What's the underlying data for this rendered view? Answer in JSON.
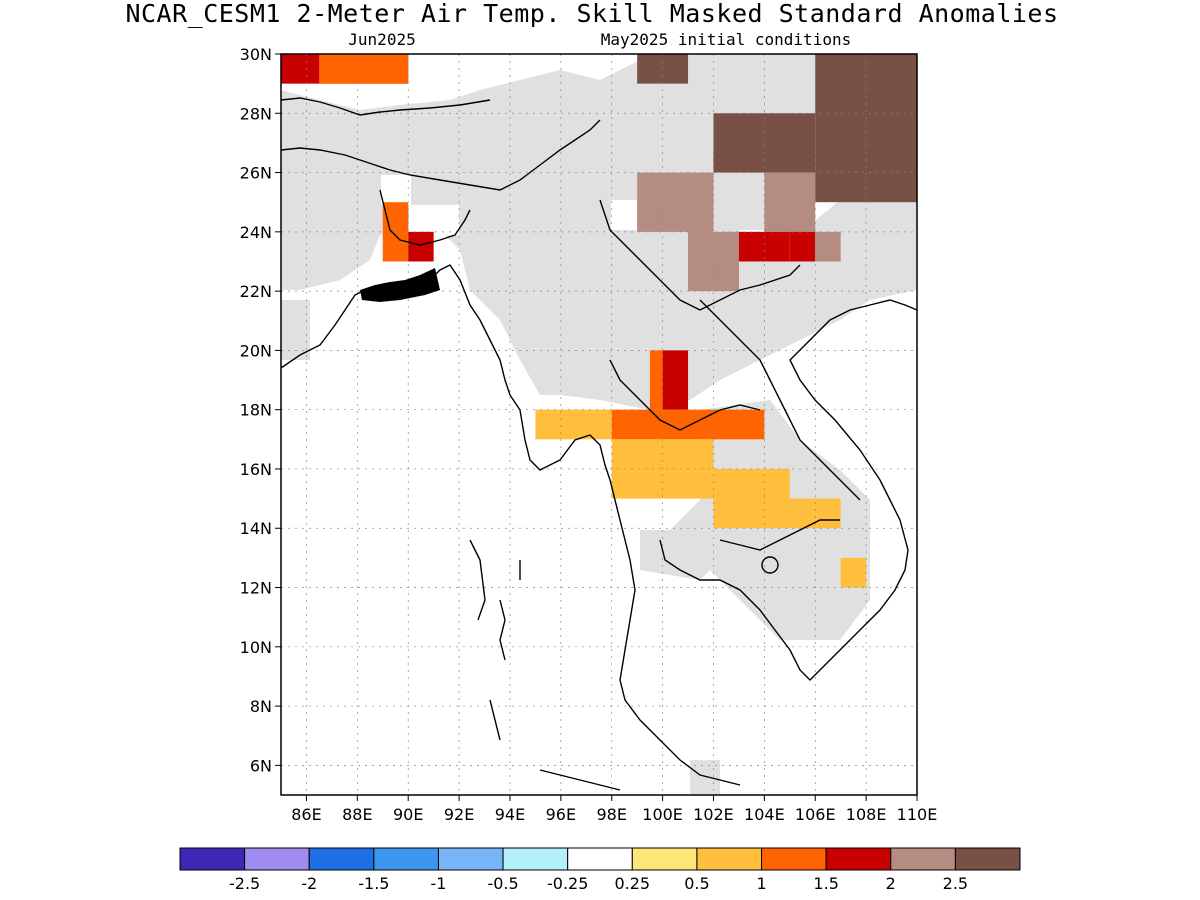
{
  "title": "NCAR_CESM1 2-Meter Air Temp. Skill Masked Standard Anomalies",
  "target_month": "Jun2025",
  "initial_conditions": "May2025 initial conditions",
  "chart_data": {
    "type": "heatmap",
    "lon_range": [
      85,
      110
    ],
    "lat_range": [
      5,
      30
    ],
    "x_ticks": [
      "86E",
      "88E",
      "90E",
      "92E",
      "94E",
      "96E",
      "98E",
      "100E",
      "102E",
      "104E",
      "106E",
      "108E",
      "110E"
    ],
    "y_ticks": [
      "6N",
      "8N",
      "10N",
      "12N",
      "14N",
      "16N",
      "18N",
      "20N",
      "22N",
      "24N",
      "26N",
      "28N",
      "30N"
    ],
    "x_tick_values": [
      86,
      88,
      90,
      92,
      94,
      96,
      98,
      100,
      102,
      104,
      106,
      108,
      110
    ],
    "y_tick_values": [
      6,
      8,
      10,
      12,
      14,
      16,
      18,
      20,
      22,
      24,
      26,
      28,
      30
    ],
    "grid": true,
    "colorbar": {
      "labels": [
        "-2.5",
        "-2",
        "-1.5",
        "-1",
        "-0.5",
        "-0.25",
        "0.25",
        "0.5",
        "1",
        "1.5",
        "2",
        "2.5"
      ],
      "colors": [
        "#3c28b4",
        "#a08cf0",
        "#1e6ee6",
        "#3c96f0",
        "#78b4f8",
        "#b4f0fa",
        "#ffffff",
        "#ffe678",
        "#ffbe3c",
        "#ff6400",
        "#c80000",
        "#b48c82",
        "#785046"
      ],
      "placement": "bottom"
    },
    "skill_mask_color": "#e0e0e0",
    "regions": [
      {
        "lon": [
          85,
          90
        ],
        "lat": [
          29,
          30
        ],
        "value": 1.7
      },
      {
        "lon": [
          86.5,
          90
        ],
        "lat": [
          29,
          30
        ],
        "value": 1.2
      },
      {
        "lon": [
          89,
          90
        ],
        "lat": [
          23,
          25
        ],
        "value": 1.2
      },
      {
        "lon": [
          90,
          91
        ],
        "lat": [
          23,
          24
        ],
        "value": 1.7
      },
      {
        "lon": [
          99.5,
          101
        ],
        "lat": [
          18,
          20
        ],
        "value": 1.2
      },
      {
        "lon": [
          100,
          101
        ],
        "lat": [
          18,
          20
        ],
        "value": 1.7
      },
      {
        "lon": [
          98,
          104
        ],
        "lat": [
          17,
          18
        ],
        "value": 1.2
      },
      {
        "lon": [
          95,
          98
        ],
        "lat": [
          17,
          18
        ],
        "value": 0.7
      },
      {
        "lon": [
          98,
          102
        ],
        "lat": [
          15,
          17
        ],
        "value": 0.7
      },
      {
        "lon": [
          102,
          105
        ],
        "lat": [
          14,
          16
        ],
        "value": 0.7
      },
      {
        "lon": [
          105,
          107
        ],
        "lat": [
          14,
          15
        ],
        "value": 0.7
      },
      {
        "lon": [
          107,
          108
        ],
        "lat": [
          12,
          13
        ],
        "value": 0.7
      },
      {
        "lon": [
          99,
          102
        ],
        "lat": [
          24,
          26
        ],
        "value": 2.2
      },
      {
        "lon": [
          101,
          103
        ],
        "lat": [
          22,
          24
        ],
        "value": 2.2
      },
      {
        "lon": [
          102,
          106
        ],
        "lat": [
          26,
          28
        ],
        "value": 2.7
      },
      {
        "lon": [
          104,
          106
        ],
        "lat": [
          24,
          26
        ],
        "value": 2.2
      },
      {
        "lon": [
          103,
          105
        ],
        "lat": [
          23,
          24
        ],
        "value": 1.7
      },
      {
        "lon": [
          105,
          106
        ],
        "lat": [
          23,
          24
        ],
        "value": 1.7
      },
      {
        "lon": [
          106,
          107
        ],
        "lat": [
          23,
          24
        ],
        "value": 2.2
      },
      {
        "lon": [
          99,
          101
        ],
        "lat": [
          29,
          30
        ],
        "value": 2.7
      },
      {
        "lon": [
          106,
          110
        ],
        "lat": [
          25,
          30
        ],
        "value": 2.7
      }
    ]
  }
}
